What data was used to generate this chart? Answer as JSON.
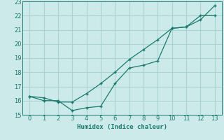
{
  "xlabel": "Humidex (Indice chaleur)",
  "x": [
    0,
    1,
    2,
    3,
    4,
    5,
    6,
    7,
    8,
    9,
    10,
    11,
    12,
    13
  ],
  "line1": [
    16.3,
    16.0,
    16.0,
    15.3,
    15.5,
    15.6,
    17.2,
    18.3,
    18.5,
    18.8,
    21.1,
    21.2,
    21.7,
    22.7
  ],
  "line2": [
    16.3,
    16.2,
    15.9,
    15.9,
    16.5,
    17.2,
    18.0,
    18.9,
    19.6,
    20.3,
    21.1,
    21.2,
    22.0,
    22.0
  ],
  "line_color": "#1a7a6e",
  "bg_color": "#cceaea",
  "grid_color": "#aad4d4",
  "ylim": [
    15,
    23
  ],
  "xlim": [
    -0.5,
    13.5
  ],
  "yticks": [
    15,
    16,
    17,
    18,
    19,
    20,
    21,
    22,
    23
  ],
  "xticks": [
    0,
    1,
    2,
    3,
    4,
    5,
    6,
    7,
    8,
    9,
    10,
    11,
    12,
    13
  ],
  "marker": "+"
}
